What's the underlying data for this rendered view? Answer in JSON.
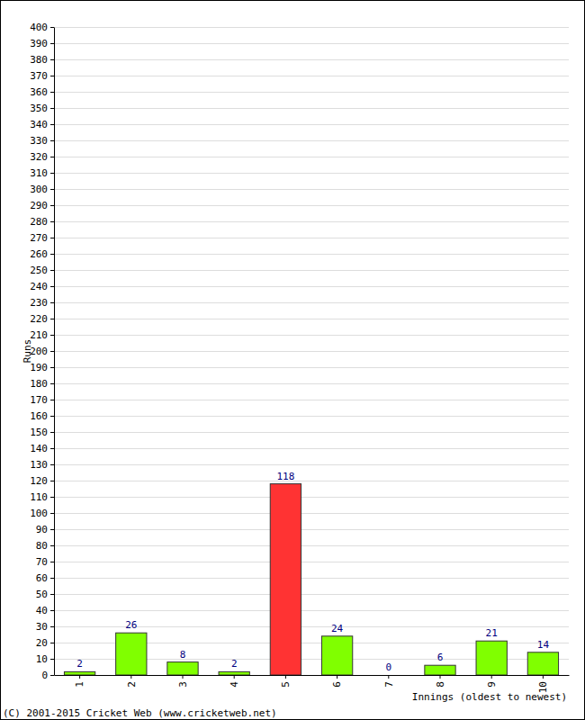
{
  "chart_data": {
    "type": "bar",
    "categories": [
      "1",
      "2",
      "3",
      "4",
      "5",
      "6",
      "7",
      "8",
      "9",
      "10"
    ],
    "values": [
      2,
      26,
      8,
      2,
      118,
      24,
      0,
      6,
      21,
      14
    ],
    "colors": [
      "#80ff00",
      "#80ff00",
      "#80ff00",
      "#80ff00",
      "#ff3333",
      "#80ff00",
      "#80ff00",
      "#80ff00",
      "#80ff00",
      "#80ff00"
    ],
    "ylim": [
      0,
      400
    ],
    "yticks": [
      0,
      10,
      20,
      30,
      40,
      50,
      60,
      70,
      80,
      90,
      100,
      110,
      120,
      130,
      140,
      150,
      160,
      170,
      180,
      190,
      200,
      210,
      220,
      230,
      240,
      250,
      260,
      270,
      280,
      290,
      300,
      310,
      320,
      330,
      340,
      350,
      360,
      370,
      380,
      390,
      400
    ],
    "grid": true,
    "data_labels": true,
    "x_label": "Innings (oldest to newest)",
    "y_label": "Runs",
    "annotations": [
      "(C) 2001-2015 Cricket Web (www.cricketweb.net)"
    ]
  }
}
